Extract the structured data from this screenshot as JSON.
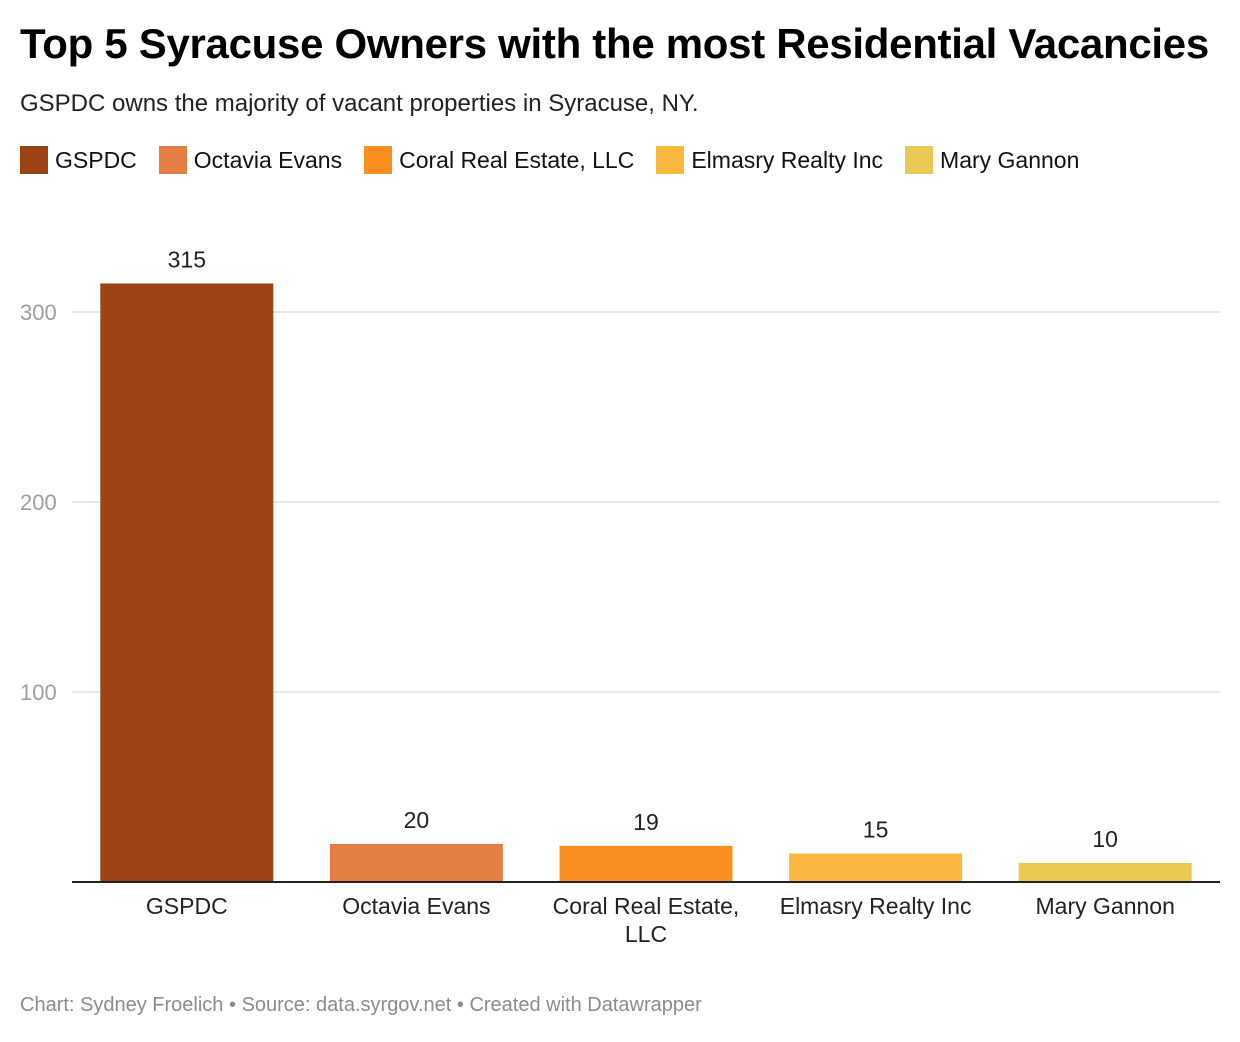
{
  "title": "Top 5 Syracuse Owners with the most Residential Vacancies",
  "subtitle": "GSPDC owns the majority of vacant properties in Syracuse, NY.",
  "footer": {
    "credit": "Chart: Sydney Froelich",
    "separator": "•",
    "source": "Source: data.syrgov.net",
    "created": "Created with Datawrapper"
  },
  "chart_data": {
    "type": "bar",
    "categories": [
      "GSPDC",
      "Octavia Evans",
      "Coral Real Estate, LLC",
      "Elmasry Realty Inc",
      "Mary Gannon"
    ],
    "category_lines": [
      [
        "GSPDC"
      ],
      [
        "Octavia Evans"
      ],
      [
        "Coral Real Estate,",
        "LLC"
      ],
      [
        "Elmasry Realty Inc"
      ],
      [
        "Mary Gannon"
      ]
    ],
    "values": [
      315,
      20,
      19,
      15,
      10
    ],
    "colors": [
      "#9c4215",
      "#e47e44",
      "#f98f21",
      "#fbb840",
      "#e9c954"
    ],
    "legend": [
      "GSPDC",
      "Octavia Evans",
      "Coral Real Estate, LLC",
      "Elmasry Realty Inc",
      "Mary Gannon"
    ],
    "legend_position": "top",
    "yticks": [
      100,
      200,
      300
    ],
    "ylim": [
      0,
      330
    ],
    "grid": true,
    "xlabel": "",
    "ylabel": ""
  }
}
